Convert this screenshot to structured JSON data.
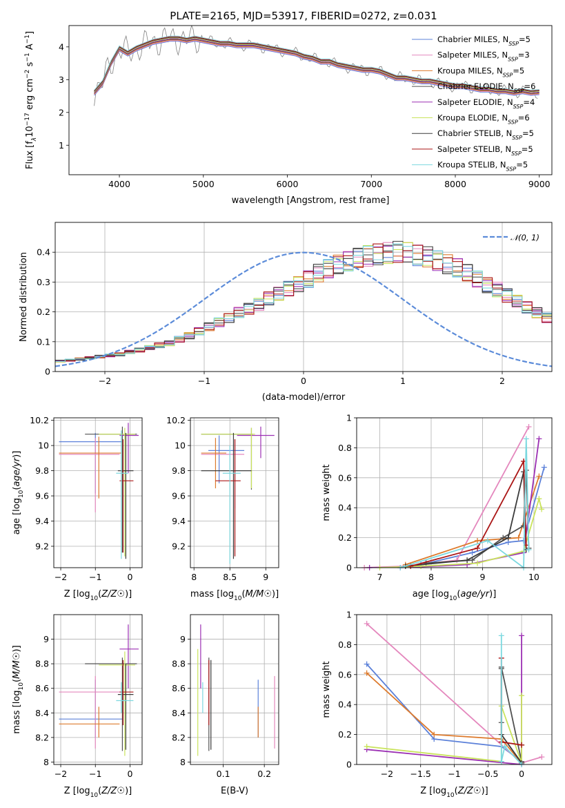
{
  "figure_title": "PLATE=2165, MJD=53917, FIBERID=0272, z=0.031",
  "models": [
    {
      "name": "Chabrier MILES",
      "nssp": "5",
      "color": "#5b80d9"
    },
    {
      "name": "Salpeter MILES",
      "nssp": "3",
      "color": "#e487bd"
    },
    {
      "name": "Kroupa MILES",
      "nssp": "5",
      "color": "#dd7a2c"
    },
    {
      "name": "Chabrier ELODIE",
      "nssp": "6",
      "color": "#505050"
    },
    {
      "name": "Salpeter ELODIE",
      "nssp": "4",
      "color": "#9b2fb3"
    },
    {
      "name": "Kroupa ELODIE",
      "nssp": "6",
      "color": "#c9e35b"
    },
    {
      "name": "Chabrier STELIB",
      "nssp": "5",
      "color": "#3a3a3a"
    },
    {
      "name": "Salpeter STELIB",
      "nssp": "5",
      "color": "#aa1515"
    },
    {
      "name": "Kroupa STELIB",
      "nssp": "5",
      "color": "#7bd8df"
    }
  ],
  "nssp_label": "N",
  "nssp_sub": "SSP",
  "chart_data": [
    {
      "id": "spectrum",
      "type": "line",
      "xlabel": "wavelength [Angstrom, rest frame]",
      "ylabel_parts": [
        "Flux [f",
        "λ",
        "10",
        "−17",
        " erg cm",
        "−2",
        " s",
        "−1",
        " A",
        "−1",
        "]"
      ],
      "xlim": [
        3400,
        9150
      ],
      "ylim": [
        0.1,
        4.65
      ],
      "xticks": [
        4000,
        5000,
        6000,
        7000,
        8000,
        9000
      ],
      "yticks": [
        1,
        2,
        3,
        4
      ],
      "series": [
        {
          "name": "data",
          "color": "#808080",
          "x": [
            3700,
            3800,
            3900,
            4000,
            4100,
            4200,
            4300,
            4400,
            4500,
            4600,
            4700,
            4800,
            4900,
            5000,
            5100,
            5200,
            5300,
            5400,
            5500,
            5600,
            5700,
            5800,
            5900,
            6000,
            6100,
            6200,
            6300,
            6400,
            6500,
            6600,
            6700,
            6800,
            6900,
            7000,
            7100,
            7200,
            7300,
            7400,
            7500,
            7600,
            7700,
            7800,
            7900,
            8000,
            8100,
            8200,
            8300,
            8400,
            8500,
            8600,
            8700,
            8800,
            8900,
            9000
          ],
          "y": [
            2.6,
            2.9,
            3.5,
            3.95,
            3.8,
            3.95,
            4.05,
            4.15,
            4.2,
            4.25,
            4.25,
            4.2,
            4.25,
            4.2,
            4.15,
            4.1,
            4.1,
            4.05,
            4.05,
            4.05,
            4.0,
            3.95,
            3.9,
            3.85,
            3.8,
            3.7,
            3.65,
            3.55,
            3.55,
            3.45,
            3.4,
            3.35,
            3.3,
            3.3,
            3.25,
            3.15,
            3.05,
            3.05,
            3.0,
            2.95,
            2.95,
            2.9,
            2.85,
            2.8,
            2.8,
            2.75,
            2.7,
            2.7,
            2.65,
            2.65,
            2.6,
            2.65,
            2.6,
            2.62
          ]
        }
      ]
    },
    {
      "id": "residuals",
      "type": "histogram",
      "xlabel": "(data-model)/error",
      "ylabel": "Normed distribution",
      "xlim": [
        -2.5,
        2.5
      ],
      "ylim": [
        0,
        0.5
      ],
      "xticks": [
        -2,
        -1,
        0,
        1,
        2
      ],
      "yticks": [
        0.0,
        0.1,
        0.2,
        0.3,
        0.4
      ],
      "bin_width": 0.1,
      "bin_start": -2.5,
      "histogram": [
        0.035,
        0.038,
        0.042,
        0.046,
        0.05,
        0.054,
        0.058,
        0.066,
        0.072,
        0.08,
        0.088,
        0.095,
        0.108,
        0.12,
        0.135,
        0.15,
        0.165,
        0.18,
        0.198,
        0.21,
        0.225,
        0.245,
        0.262,
        0.278,
        0.292,
        0.31,
        0.33,
        0.345,
        0.36,
        0.37,
        0.38,
        0.388,
        0.393,
        0.398,
        0.402,
        0.398,
        0.39,
        0.385,
        0.372,
        0.36,
        0.348,
        0.33,
        0.31,
        0.29,
        0.275,
        0.255,
        0.235,
        0.215,
        0.198,
        0.18
      ],
      "legend": "𝒩(0, 1)",
      "gaussian": {
        "mean": 0,
        "sigma": 1,
        "color": "#5b8bd9"
      }
    },
    {
      "id": "age-vs-Z",
      "type": "errorbar",
      "xlabel": "Z [log10(Z/Z☉)]",
      "ylabel": "age  [log10(age/yr)]",
      "xlim": [
        -2.2,
        0.35
      ],
      "ylim": [
        9.03,
        10.22
      ],
      "xticks": [
        -2,
        -1,
        0
      ],
      "yticks": [
        9.2,
        9.4,
        9.6,
        9.8,
        10.0,
        10.2
      ],
      "points": [
        {
          "x": -1.0,
          "y": 10.03,
          "xlo": -2.05,
          "xhi": -0.2,
          "ylo": 9.62,
          "yhi": 10.1,
          "model": 0
        },
        {
          "x": -1.0,
          "y": 9.93,
          "xlo": -2.05,
          "xhi": -0.3,
          "ylo": 9.47,
          "yhi": 10.06,
          "model": 1
        },
        {
          "x": -0.9,
          "y": 9.94,
          "xlo": -2.05,
          "xhi": -0.25,
          "ylo": 9.58,
          "yhi": 10.07,
          "model": 2
        },
        {
          "x": -0.22,
          "y": 10.09,
          "xlo": -1.3,
          "xhi": 0.2,
          "ylo": 9.15,
          "yhi": 10.15,
          "model": 3
        },
        {
          "x": -0.05,
          "y": 10.08,
          "xlo": -0.3,
          "xhi": 0.25,
          "ylo": 9.78,
          "yhi": 10.18,
          "model": 4
        },
        {
          "x": -0.15,
          "y": 10.09,
          "xlo": -0.9,
          "xhi": 0.15,
          "ylo": 9.12,
          "yhi": 10.14,
          "model": 5
        },
        {
          "x": -0.12,
          "y": 9.8,
          "xlo": -0.35,
          "xhi": 0.1,
          "ylo": 9.1,
          "yhi": 10.1,
          "model": 6
        },
        {
          "x": -0.2,
          "y": 9.72,
          "xlo": -0.3,
          "xhi": 0.1,
          "ylo": 9.15,
          "yhi": 10.05,
          "model": 7
        },
        {
          "x": -0.25,
          "y": 9.78,
          "xlo": -0.4,
          "xhi": -0.05,
          "ylo": 9.1,
          "yhi": 10.12,
          "model": 8
        }
      ]
    },
    {
      "id": "age-vs-mass",
      "type": "errorbar",
      "xlabel": "mass [log10(M/M☉)]",
      "ylabel": "",
      "xlim": [
        7.95,
        9.18
      ],
      "ylim": [
        9.03,
        10.22
      ],
      "xticks": [
        8.0,
        8.5,
        9.0
      ],
      "yticks": [
        9.2,
        9.4,
        9.6,
        9.8,
        10.0,
        10.2
      ],
      "points": [
        {
          "x": 8.35,
          "y": 9.96,
          "xlo": 8.2,
          "xhi": 8.7,
          "ylo": 9.7,
          "yhi": 10.08,
          "model": 0
        },
        {
          "x": 8.57,
          "y": 9.93,
          "xlo": 8.1,
          "xhi": 8.7,
          "ylo": 9.5,
          "yhi": 10.05,
          "model": 1
        },
        {
          "x": 8.3,
          "y": 9.94,
          "xlo": 8.1,
          "xhi": 8.45,
          "ylo": 9.66,
          "yhi": 10.06,
          "model": 2
        },
        {
          "x": 8.8,
          "y": 10.09,
          "xlo": 8.1,
          "xhi": 8.82,
          "ylo": 9.65,
          "yhi": 10.14,
          "model": 3
        },
        {
          "x": 8.93,
          "y": 10.08,
          "xlo": 8.6,
          "xhi": 9.12,
          "ylo": 9.9,
          "yhi": 10.15,
          "model": 4
        },
        {
          "x": 8.8,
          "y": 10.09,
          "xlo": 8.1,
          "xhi": 8.85,
          "ylo": 9.66,
          "yhi": 10.14,
          "model": 5
        },
        {
          "x": 8.55,
          "y": 9.8,
          "xlo": 8.1,
          "xhi": 8.8,
          "ylo": 9.1,
          "yhi": 10.1,
          "model": 6
        },
        {
          "x": 8.57,
          "y": 9.72,
          "xlo": 8.3,
          "xhi": 8.65,
          "ylo": 9.12,
          "yhi": 10.05,
          "model": 7
        },
        {
          "x": 8.5,
          "y": 9.78,
          "xlo": 8.4,
          "xhi": 8.65,
          "ylo": 9.06,
          "yhi": 10.0,
          "model": 8
        }
      ]
    },
    {
      "id": "mass-weight-vs-age",
      "type": "line",
      "xlabel": "age  [log10(age/yr)]",
      "ylabel": "mass weight",
      "xlim": [
        6.55,
        10.35
      ],
      "ylim": [
        0,
        1
      ],
      "xticks": [
        7,
        8,
        9,
        10
      ],
      "yticks": [
        0.0,
        0.2,
        0.4,
        0.6,
        0.8,
        1.0
      ],
      "series": [
        {
          "model": 0,
          "x": [
            7.8,
            8.8,
            9.5,
            9.8,
            10.2
          ],
          "y": [
            0.02,
            0.1,
            0.17,
            0.18,
            0.67
          ]
        },
        {
          "model": 1,
          "x": [
            6.7,
            7.5,
            8.5,
            9.9
          ],
          "y": [
            0.0,
            0.01,
            0.05,
            0.94
          ]
        },
        {
          "model": 2,
          "x": [
            7.5,
            8.9,
            9.7,
            10.1
          ],
          "y": [
            0.02,
            0.18,
            0.2,
            0.61
          ]
        },
        {
          "model": 3,
          "x": [
            7.9,
            8.8,
            9.4,
            9.8,
            9.85,
            9.9
          ],
          "y": [
            0.03,
            0.05,
            0.2,
            0.28,
            0.65,
            0.13
          ]
        },
        {
          "model": 4,
          "x": [
            6.8,
            7.4,
            8.7,
            9.8,
            10.1
          ],
          "y": [
            0.0,
            0.0,
            0.02,
            0.1,
            0.86
          ]
        },
        {
          "model": 5,
          "x": [
            7.0,
            7.8,
            8.9,
            9.8,
            10.1,
            10.15
          ],
          "y": [
            0.0,
            0.01,
            0.03,
            0.11,
            0.46,
            0.39
          ]
        },
        {
          "model": 6,
          "x": [
            7.5,
            8.7,
            9.5,
            9.8,
            9.85
          ],
          "y": [
            0.01,
            0.05,
            0.2,
            0.64,
            0.12
          ]
        },
        {
          "model": 7,
          "x": [
            7.6,
            8.9,
            9.8,
            9.85
          ],
          "y": [
            0.01,
            0.13,
            0.71,
            0.15
          ]
        },
        {
          "model": 8,
          "x": [
            7.4,
            9.1,
            9.8,
            9.85,
            9.9
          ],
          "y": [
            0.0,
            0.18,
            0.0,
            0.86,
            0.12
          ]
        }
      ]
    },
    {
      "id": "mass-vs-Z",
      "type": "errorbar",
      "xlabel": "Z [log10(Z/Z☉)]",
      "ylabel": "mass [log10(M/M☉)]",
      "xlim": [
        -2.2,
        0.35
      ],
      "ylim": [
        7.98,
        9.2
      ],
      "xticks": [
        -2,
        -1,
        0
      ],
      "yticks": [
        8.0,
        8.2,
        8.4,
        8.6,
        8.8,
        9.0
      ],
      "points": [
        {
          "x": -1.0,
          "y": 8.35,
          "xlo": -2.05,
          "xhi": -0.2,
          "ylo": 8.2,
          "yhi": 8.67,
          "model": 0
        },
        {
          "x": -1.0,
          "y": 8.57,
          "xlo": -2.05,
          "xhi": -0.2,
          "ylo": 8.11,
          "yhi": 8.7,
          "model": 1
        },
        {
          "x": -0.9,
          "y": 8.31,
          "xlo": -2.05,
          "xhi": -0.3,
          "ylo": 8.2,
          "yhi": 8.45,
          "model": 2
        },
        {
          "x": -0.22,
          "y": 8.8,
          "xlo": -1.3,
          "xhi": 0.2,
          "ylo": 8.09,
          "yhi": 8.85,
          "model": 3
        },
        {
          "x": -0.05,
          "y": 8.92,
          "xlo": -0.3,
          "xhi": 0.25,
          "ylo": 8.6,
          "yhi": 9.12,
          "model": 4
        },
        {
          "x": -0.15,
          "y": 8.79,
          "xlo": -0.9,
          "xhi": 0.15,
          "ylo": 8.05,
          "yhi": 8.9,
          "model": 5
        },
        {
          "x": -0.12,
          "y": 8.55,
          "xlo": -0.35,
          "xhi": 0.1,
          "ylo": 8.1,
          "yhi": 8.8,
          "model": 6
        },
        {
          "x": -0.2,
          "y": 8.57,
          "xlo": -0.3,
          "xhi": 0.1,
          "ylo": 8.3,
          "yhi": 8.83,
          "model": 7
        },
        {
          "x": -0.25,
          "y": 8.5,
          "xlo": -0.4,
          "xhi": 0.1,
          "ylo": 8.4,
          "yhi": 8.65,
          "model": 8
        }
      ]
    },
    {
      "id": "mass-vs-EBV",
      "type": "errorbar",
      "xlabel": "E(B-V)",
      "ylabel": "",
      "xlim": [
        0.02,
        0.235
      ],
      "ylim": [
        7.98,
        9.2
      ],
      "xticks": [
        0.1,
        0.2
      ],
      "yticks": [
        8.0,
        8.2,
        8.4,
        8.6,
        8.8,
        9.0
      ],
      "points": [
        {
          "x": 0.185,
          "y": 8.35,
          "xlo": 0.185,
          "xhi": 0.185,
          "ylo": 8.2,
          "yhi": 8.67,
          "model": 0
        },
        {
          "x": 0.225,
          "y": 8.57,
          "xlo": 0.225,
          "xhi": 0.225,
          "ylo": 8.11,
          "yhi": 8.7,
          "model": 1
        },
        {
          "x": 0.185,
          "y": 8.31,
          "xlo": 0.185,
          "xhi": 0.185,
          "ylo": 8.2,
          "yhi": 8.45,
          "model": 2
        },
        {
          "x": 0.065,
          "y": 8.6,
          "xlo": 0.065,
          "xhi": 0.065,
          "ylo": 8.09,
          "yhi": 8.85,
          "model": 3
        },
        {
          "x": 0.045,
          "y": 8.9,
          "xlo": 0.045,
          "xhi": 0.045,
          "ylo": 8.6,
          "yhi": 9.12,
          "model": 4
        },
        {
          "x": 0.038,
          "y": 8.5,
          "xlo": 0.038,
          "xhi": 0.038,
          "ylo": 8.05,
          "yhi": 8.92,
          "model": 5
        },
        {
          "x": 0.07,
          "y": 8.5,
          "xlo": 0.07,
          "xhi": 0.07,
          "ylo": 8.1,
          "yhi": 8.83,
          "model": 6
        },
        {
          "x": 0.065,
          "y": 8.55,
          "xlo": 0.065,
          "xhi": 0.065,
          "ylo": 8.3,
          "yhi": 8.83,
          "model": 7
        },
        {
          "x": 0.05,
          "y": 8.5,
          "xlo": 0.05,
          "xhi": 0.05,
          "ylo": 8.4,
          "yhi": 8.65,
          "model": 8
        }
      ]
    },
    {
      "id": "mass-weight-vs-Z",
      "type": "line",
      "xlabel": "Z [log10(Z/Z☉)]",
      "ylabel": "mass weight",
      "xlim": [
        -2.45,
        0.45
      ],
      "ylim": [
        0,
        1
      ],
      "xticks": [
        -2.0,
        -1.5,
        -1.0,
        -0.5,
        0.0
      ],
      "yticks": [
        0.0,
        0.2,
        0.4,
        0.6,
        0.8,
        1.0
      ],
      "series": [
        {
          "model": 0,
          "x": [
            -2.3,
            -1.3,
            -0.3,
            0.0
          ],
          "y": [
            0.67,
            0.17,
            0.12,
            0.02
          ]
        },
        {
          "model": 1,
          "x": [
            -2.3,
            0.0,
            0.3
          ],
          "y": [
            0.94,
            0.01,
            0.05
          ]
        },
        {
          "model": 2,
          "x": [
            -2.3,
            -1.3,
            -0.3,
            0.0
          ],
          "y": [
            0.61,
            0.2,
            0.17,
            0.01
          ]
        },
        {
          "model": 3,
          "x": [
            -0.3,
            -0.3,
            0.0,
            0.0
          ],
          "y": [
            0.28,
            0.65,
            0.02,
            0.13
          ]
        },
        {
          "model": 4,
          "x": [
            -2.3,
            0.0,
            0.0
          ],
          "y": [
            0.1,
            0.0,
            0.86
          ]
        },
        {
          "model": 5,
          "x": [
            -2.3,
            -0.3,
            -0.3,
            0.0,
            0.0
          ],
          "y": [
            0.12,
            0.02,
            0.39,
            0.01,
            0.46
          ]
        },
        {
          "model": 6,
          "x": [
            -0.3,
            -0.3,
            0.0
          ],
          "y": [
            0.64,
            0.2,
            0.01
          ]
        },
        {
          "model": 7,
          "x": [
            -0.3,
            -0.3,
            0.0
          ],
          "y": [
            0.71,
            0.15,
            0.13
          ]
        },
        {
          "model": 8,
          "x": [
            -0.3,
            -0.3,
            -0.25,
            0.0
          ],
          "y": [
            0.86,
            0.02,
            0.12,
            0.0
          ]
        }
      ]
    }
  ]
}
